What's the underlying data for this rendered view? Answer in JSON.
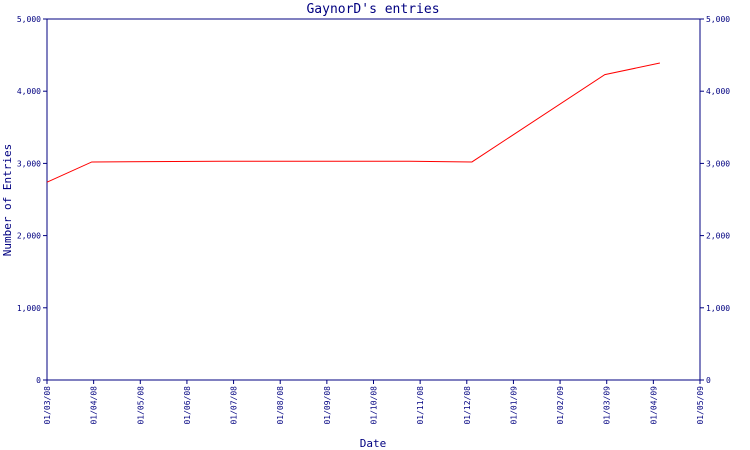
{
  "chart_data": {
    "type": "line",
    "title": "GaynorD's entries",
    "x_label": "Date",
    "y_label": "Number of Entries",
    "x": [
      0,
      0.96,
      3.71,
      7.78,
      9.11,
      11.96,
      13.14
    ],
    "series": [
      {
        "name": "entries",
        "color": "#ff0000",
        "values": [
          2740,
          3020,
          3030,
          3030,
          3020,
          4230,
          4390
        ]
      }
    ],
    "xlim": [
      0,
      14
    ],
    "xticks": [
      {
        "value": 0,
        "label": "01/03/08"
      },
      {
        "value": 1,
        "label": "01/04/08"
      },
      {
        "value": 2,
        "label": "01/05/08"
      },
      {
        "value": 3,
        "label": "01/06/08"
      },
      {
        "value": 4,
        "label": "01/07/08"
      },
      {
        "value": 5,
        "label": "01/08/08"
      },
      {
        "value": 6,
        "label": "01/09/08"
      },
      {
        "value": 7,
        "label": "01/10/08"
      },
      {
        "value": 8,
        "label": "01/11/08"
      },
      {
        "value": 9,
        "label": "01/12/08"
      },
      {
        "value": 10,
        "label": "01/01/09"
      },
      {
        "value": 11,
        "label": "01/02/09"
      },
      {
        "value": 12,
        "label": "01/03/09"
      },
      {
        "value": 13,
        "label": "01/04/09"
      },
      {
        "value": 14,
        "label": "01/05/09"
      }
    ],
    "ylim": [
      0,
      5000
    ],
    "yticks": [
      0,
      {
        "value": 1000,
        "label": "1,000"
      },
      {
        "value": 2000,
        "label": "2,000"
      },
      {
        "value": 3000,
        "label": "3,000"
      },
      {
        "value": 4000,
        "label": "4,000"
      },
      {
        "value": 5000,
        "label": "5,000"
      }
    ],
    "axis_color": "#000080"
  }
}
